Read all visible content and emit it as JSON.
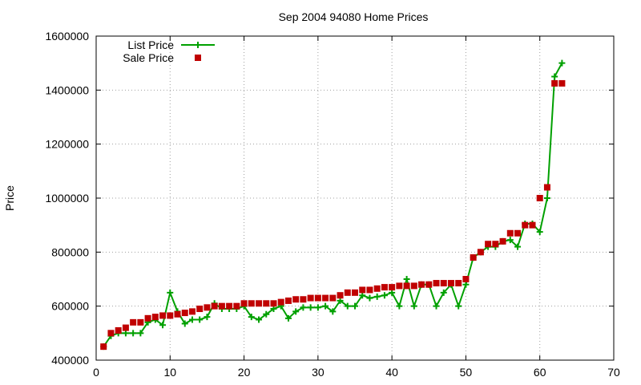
{
  "chart_data": {
    "type": "line",
    "title": "Sep 2004 94080 Home Prices",
    "xlabel": "",
    "ylabel": "Price",
    "xlim": [
      0,
      70
    ],
    "ylim": [
      400000,
      1600000
    ],
    "xticks": [
      0,
      10,
      20,
      30,
      40,
      50,
      60,
      70
    ],
    "yticks": [
      400000,
      600000,
      800000,
      1000000,
      1200000,
      1400000,
      1600000
    ],
    "grid": true,
    "legend_position": "top-left",
    "series": [
      {
        "name": "List Price",
        "style": "line-plus",
        "color": "#00a000",
        "x": [
          1,
          2,
          3,
          4,
          5,
          6,
          7,
          8,
          9,
          10,
          11,
          12,
          13,
          14,
          15,
          16,
          17,
          18,
          19,
          20,
          21,
          22,
          23,
          24,
          25,
          26,
          27,
          28,
          29,
          30,
          31,
          32,
          33,
          34,
          35,
          36,
          37,
          38,
          39,
          40,
          41,
          42,
          43,
          44,
          45,
          46,
          47,
          48,
          49,
          50,
          51,
          52,
          53,
          54,
          55,
          56,
          57,
          58,
          59,
          60,
          61,
          62,
          63
        ],
        "values": [
          450000,
          490000,
          500000,
          500000,
          500000,
          500000,
          540000,
          550000,
          530000,
          650000,
          580000,
          535000,
          550000,
          550000,
          560000,
          610000,
          590000,
          590000,
          590000,
          600000,
          560000,
          550000,
          570000,
          590000,
          600000,
          555000,
          580000,
          595000,
          595000,
          595000,
          600000,
          580000,
          620000,
          600000,
          600000,
          640000,
          630000,
          635000,
          640000,
          650000,
          600000,
          700000,
          600000,
          680000,
          680000,
          600000,
          650000,
          680000,
          600000,
          680000,
          780000,
          800000,
          820000,
          820000,
          840000,
          845000,
          820000,
          905000,
          905000,
          875000,
          1000000,
          1450000,
          1500000
        ]
      },
      {
        "name": "Sale Price",
        "style": "square-markers",
        "color": "#c00000",
        "x": [
          1,
          2,
          3,
          4,
          5,
          6,
          7,
          8,
          9,
          10,
          11,
          12,
          13,
          14,
          15,
          16,
          17,
          18,
          19,
          20,
          21,
          22,
          23,
          24,
          25,
          26,
          27,
          28,
          29,
          30,
          31,
          32,
          33,
          34,
          35,
          36,
          37,
          38,
          39,
          40,
          41,
          42,
          43,
          44,
          45,
          46,
          47,
          48,
          49,
          50,
          51,
          52,
          53,
          54,
          55,
          56,
          57,
          58,
          59,
          60,
          61,
          62,
          63
        ],
        "values": [
          450000,
          500000,
          510000,
          520000,
          540000,
          540000,
          555000,
          560000,
          565000,
          565000,
          570000,
          575000,
          580000,
          590000,
          595000,
          600000,
          600000,
          600000,
          600000,
          610000,
          610000,
          610000,
          610000,
          610000,
          615000,
          620000,
          625000,
          625000,
          630000,
          630000,
          630000,
          630000,
          640000,
          650000,
          650000,
          660000,
          660000,
          665000,
          670000,
          670000,
          675000,
          675000,
          675000,
          680000,
          680000,
          685000,
          685000,
          685000,
          685000,
          700000,
          780000,
          800000,
          830000,
          830000,
          840000,
          870000,
          870000,
          900000,
          900000,
          1000000,
          1040000,
          1425000,
          1425000
        ]
      }
    ]
  }
}
